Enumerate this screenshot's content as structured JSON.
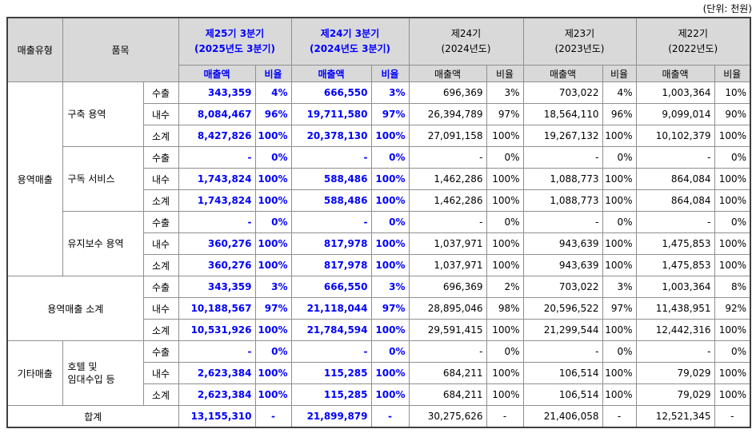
{
  "unit_label": "(단위: 천원)",
  "colors": {
    "highlight_blue": "#0000ff",
    "header_bg": "#d9d9d9",
    "inner_border": "#8f8f8f",
    "outer_border": "#3f3f3f"
  },
  "table": {
    "headers": {
      "sales_type": "매출유형",
      "item": "품목",
      "amount": "매출액",
      "ratio": "비율"
    },
    "periods": [
      {
        "line1": "제25기 3분기",
        "line2": "(2025년도 3분기)",
        "highlight": true
      },
      {
        "line1": "제24기 3분기",
        "line2": "(2024년도 3분기)",
        "highlight": true
      },
      {
        "line1": "제24기",
        "line2": "(2024년도)",
        "highlight": false
      },
      {
        "line1": "제23기",
        "line2": "(2023년도)",
        "highlight": false
      },
      {
        "line1": "제22기",
        "line2": "(2022년도)",
        "highlight": false
      }
    ],
    "rows": [
      {
        "lead": [
          {
            "text": "용역매출",
            "rowspan": 9,
            "colspan": 1,
            "name": "sales-type-cell",
            "class": "stype"
          },
          {
            "text": "구축 용역",
            "rowspan": 3,
            "colspan": 1,
            "name": "item-cell",
            "class": "item"
          }
        ],
        "division": "수출",
        "values": [
          "343,359",
          "4%",
          "666,550",
          "3%",
          "696,369",
          "3%",
          "703,022",
          "4%",
          "1,003,364",
          "10%"
        ]
      },
      {
        "division": "내수",
        "values": [
          "8,084,467",
          "96%",
          "19,711,580",
          "97%",
          "26,394,789",
          "97%",
          "18,564,110",
          "96%",
          "9,099,014",
          "90%"
        ]
      },
      {
        "division": "소계",
        "values": [
          "8,427,826",
          "100%",
          "20,378,130",
          "100%",
          "27,091,158",
          "100%",
          "19,267,132",
          "100%",
          "10,102,379",
          "100%"
        ]
      },
      {
        "lead": [
          {
            "text": "구독 서비스",
            "rowspan": 3,
            "colspan": 1,
            "name": "item-cell",
            "class": "item"
          }
        ],
        "division": "수출",
        "values": [
          "-",
          "0%",
          "-",
          "0%",
          "-",
          "0%",
          "-",
          "0%",
          "-",
          "0%"
        ]
      },
      {
        "division": "내수",
        "values": [
          "1,743,824",
          "100%",
          "588,486",
          "100%",
          "1,462,286",
          "100%",
          "1,088,773",
          "100%",
          "864,084",
          "100%"
        ]
      },
      {
        "division": "소계",
        "values": [
          "1,743,824",
          "100%",
          "588,486",
          "100%",
          "1,462,286",
          "100%",
          "1,088,773",
          "100%",
          "864,084",
          "100%"
        ]
      },
      {
        "lead": [
          {
            "text": "유지보수 용역",
            "rowspan": 3,
            "colspan": 1,
            "name": "item-cell",
            "class": "item"
          }
        ],
        "division": "수출",
        "values": [
          "-",
          "0%",
          "-",
          "0%",
          "-",
          "0%",
          "-",
          "0%",
          "-",
          "0%"
        ]
      },
      {
        "division": "내수",
        "values": [
          "360,276",
          "100%",
          "817,978",
          "100%",
          "1,037,971",
          "100%",
          "943,639",
          "100%",
          "1,475,853",
          "100%"
        ]
      },
      {
        "division": "소계",
        "values": [
          "360,276",
          "100%",
          "817,978",
          "100%",
          "1,037,971",
          "100%",
          "943,639",
          "100%",
          "1,475,853",
          "100%"
        ]
      },
      {
        "lead": [
          {
            "text": "용역매출 소계",
            "rowspan": 3,
            "colspan": 2,
            "name": "subtotal-label-cell",
            "class": "center"
          }
        ],
        "division": "수출",
        "values": [
          "343,359",
          "3%",
          "666,550",
          "3%",
          "696,369",
          "2%",
          "703,022",
          "3%",
          "1,003,364",
          "8%"
        ]
      },
      {
        "division": "내수",
        "values": [
          "10,188,567",
          "97%",
          "21,118,044",
          "97%",
          "28,895,046",
          "98%",
          "20,596,522",
          "97%",
          "11,438,951",
          "92%"
        ]
      },
      {
        "division": "소계",
        "values": [
          "10,531,926",
          "100%",
          "21,784,594",
          "100%",
          "29,591,415",
          "100%",
          "21,299,544",
          "100%",
          "12,442,316",
          "100%"
        ]
      },
      {
        "lead": [
          {
            "text": "기타매출",
            "rowspan": 3,
            "colspan": 1,
            "name": "sales-type-cell",
            "class": "stype"
          },
          {
            "text": "호텔 및\n임대수입 등",
            "rowspan": 3,
            "colspan": 1,
            "name": "item-cell",
            "class": "item"
          }
        ],
        "division": "수출",
        "values": [
          "-",
          "0%",
          "-",
          "0%",
          "-",
          "0%",
          "-",
          "0%",
          "-",
          "0%"
        ]
      },
      {
        "division": "내수",
        "values": [
          "2,623,384",
          "100%",
          "115,285",
          "100%",
          "684,211",
          "100%",
          "106,514",
          "100%",
          "79,029",
          "100%"
        ]
      },
      {
        "division": "소계",
        "values": [
          "2,623,384",
          "100%",
          "115,285",
          "100%",
          "684,211",
          "100%",
          "106,514",
          "100%",
          "79,029",
          "100%"
        ]
      },
      {
        "lead": [
          {
            "text": "합계",
            "rowspan": 1,
            "colspan": 3,
            "name": "total-label-cell",
            "class": "center"
          }
        ],
        "total": true,
        "values": [
          "13,155,310",
          "-",
          "21,899,879",
          "-",
          "30,275,626",
          "-",
          "21,406,058",
          "-",
          "12,521,345",
          "-"
        ]
      }
    ]
  }
}
